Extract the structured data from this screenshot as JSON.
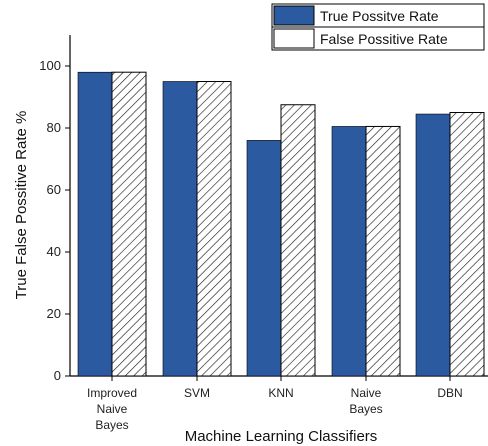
{
  "chart_data": {
    "type": "bar",
    "title": "",
    "xlabel": "Machine Learning Classifiers",
    "ylabel": "True False Possitive Rate %",
    "ylim": [
      0,
      110
    ],
    "yticks": [
      0,
      20,
      40,
      60,
      80,
      100
    ],
    "categories": [
      [
        "Improved",
        "Naive",
        "Bayes"
      ],
      [
        "SVM"
      ],
      [
        "KNN"
      ],
      [
        "Naive",
        "Bayes"
      ],
      [
        "DBN"
      ]
    ],
    "series": [
      {
        "name": "True Possitve Rate",
        "values": [
          98,
          95,
          76,
          80.5,
          84.5
        ],
        "color": "#2b5aa0",
        "pattern": "solid"
      },
      {
        "name": "False Possitive Rate",
        "values": [
          98,
          95,
          87.5,
          80.5,
          85
        ],
        "color": "#ffffff",
        "pattern": "hatch"
      }
    ],
    "legend_position": "top-right",
    "grid": false
  }
}
